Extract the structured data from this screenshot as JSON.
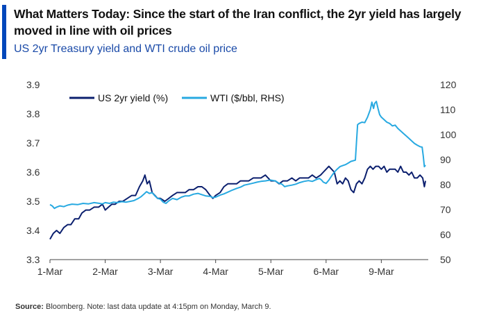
{
  "header": {
    "title": "What Matters Today: Since the start of the Iran conflict, the 2yr yield has largely moved in line with oil prices",
    "subtitle": "US 2yr Treasury yield and WTI crude oil price"
  },
  "source": {
    "label": "Source:",
    "text": "Bloomberg. Note: last data update at 4:15pm on Monday, March 9."
  },
  "colors": {
    "accent": "#0047bb",
    "yield": "#0b1f6e",
    "wti": "#27a9e1"
  },
  "chart_data": {
    "type": "line",
    "title": "What Matters Today: Since the start of the Iran conflict, the 2yr yield has largely moved in line with oil prices",
    "subtitle": "US 2yr Treasury yield and WTI crude oil price",
    "categories": [
      "1-Mar",
      "2-Mar",
      "3-Mar",
      "4-Mar",
      "5-Mar",
      "6-Mar",
      "9-Mar"
    ],
    "x_range": [
      0,
      6.85
    ],
    "left_axis": {
      "ylim": [
        3.3,
        3.9
      ],
      "ticks": [
        "3.3",
        "3.4",
        "3.5",
        "3.6",
        "3.7",
        "3.8",
        "3.9"
      ]
    },
    "right_axis": {
      "ylim": [
        50,
        120
      ],
      "ticks": [
        "50",
        "60",
        "70",
        "80",
        "90",
        "100",
        "110",
        "120"
      ]
    },
    "legend_position": "top",
    "grid": false,
    "series": [
      {
        "name": "US 2yr yield (%)",
        "axis": "left",
        "color": "#0b1f6e",
        "points": [
          [
            0.0,
            3.37
          ],
          [
            0.06,
            3.39
          ],
          [
            0.12,
            3.4
          ],
          [
            0.18,
            3.39
          ],
          [
            0.25,
            3.41
          ],
          [
            0.32,
            3.42
          ],
          [
            0.38,
            3.42
          ],
          [
            0.45,
            3.44
          ],
          [
            0.52,
            3.44
          ],
          [
            0.58,
            3.46
          ],
          [
            0.65,
            3.47
          ],
          [
            0.72,
            3.47
          ],
          [
            0.8,
            3.48
          ],
          [
            0.88,
            3.48
          ],
          [
            0.95,
            3.49
          ],
          [
            1.0,
            3.47
          ],
          [
            1.06,
            3.48
          ],
          [
            1.12,
            3.49
          ],
          [
            1.18,
            3.49
          ],
          [
            1.25,
            3.5
          ],
          [
            1.32,
            3.5
          ],
          [
            1.4,
            3.51
          ],
          [
            1.48,
            3.52
          ],
          [
            1.55,
            3.52
          ],
          [
            1.62,
            3.55
          ],
          [
            1.68,
            3.57
          ],
          [
            1.72,
            3.59
          ],
          [
            1.76,
            3.56
          ],
          [
            1.8,
            3.57
          ],
          [
            1.85,
            3.53
          ],
          [
            1.9,
            3.52
          ],
          [
            1.95,
            3.51
          ],
          [
            2.0,
            3.51
          ],
          [
            2.08,
            3.5
          ],
          [
            2.15,
            3.51
          ],
          [
            2.22,
            3.52
          ],
          [
            2.3,
            3.53
          ],
          [
            2.38,
            3.53
          ],
          [
            2.45,
            3.53
          ],
          [
            2.52,
            3.54
          ],
          [
            2.6,
            3.54
          ],
          [
            2.68,
            3.55
          ],
          [
            2.75,
            3.55
          ],
          [
            2.82,
            3.54
          ],
          [
            2.9,
            3.52
          ],
          [
            2.95,
            3.51
          ],
          [
            3.0,
            3.52
          ],
          [
            3.08,
            3.53
          ],
          [
            3.15,
            3.55
          ],
          [
            3.22,
            3.56
          ],
          [
            3.3,
            3.56
          ],
          [
            3.38,
            3.56
          ],
          [
            3.45,
            3.57
          ],
          [
            3.52,
            3.57
          ],
          [
            3.6,
            3.57
          ],
          [
            3.68,
            3.58
          ],
          [
            3.75,
            3.58
          ],
          [
            3.82,
            3.58
          ],
          [
            3.9,
            3.59
          ],
          [
            3.95,
            3.58
          ],
          [
            4.0,
            3.57
          ],
          [
            4.08,
            3.57
          ],
          [
            4.15,
            3.56
          ],
          [
            4.22,
            3.57
          ],
          [
            4.3,
            3.57
          ],
          [
            4.38,
            3.58
          ],
          [
            4.45,
            3.57
          ],
          [
            4.52,
            3.58
          ],
          [
            4.6,
            3.58
          ],
          [
            4.68,
            3.58
          ],
          [
            4.75,
            3.59
          ],
          [
            4.82,
            3.58
          ],
          [
            4.9,
            3.59
          ],
          [
            4.95,
            3.6
          ],
          [
            5.0,
            3.61
          ],
          [
            5.05,
            3.62
          ],
          [
            5.1,
            3.61
          ],
          [
            5.15,
            3.6
          ],
          [
            5.2,
            3.56
          ],
          [
            5.25,
            3.57
          ],
          [
            5.3,
            3.56
          ],
          [
            5.35,
            3.58
          ],
          [
            5.4,
            3.57
          ],
          [
            5.45,
            3.54
          ],
          [
            5.5,
            3.53
          ],
          [
            5.55,
            3.56
          ],
          [
            5.6,
            3.57
          ],
          [
            5.65,
            3.56
          ],
          [
            5.7,
            3.58
          ],
          [
            5.75,
            3.61
          ],
          [
            5.8,
            3.62
          ],
          [
            5.85,
            3.61
          ],
          [
            5.9,
            3.62
          ],
          [
            5.95,
            3.62
          ],
          [
            6.0,
            3.61
          ],
          [
            6.05,
            3.62
          ],
          [
            6.1,
            3.6
          ],
          [
            6.15,
            3.61
          ],
          [
            6.2,
            3.61
          ],
          [
            6.25,
            3.61
          ],
          [
            6.3,
            3.6
          ],
          [
            6.35,
            3.62
          ],
          [
            6.4,
            3.6
          ],
          [
            6.45,
            3.6
          ],
          [
            6.5,
            3.59
          ],
          [
            6.55,
            3.6
          ],
          [
            6.6,
            3.58
          ],
          [
            6.65,
            3.58
          ],
          [
            6.7,
            3.59
          ],
          [
            6.75,
            3.58
          ],
          [
            6.78,
            3.55
          ],
          [
            6.8,
            3.57
          ]
        ]
      },
      {
        "name": "WTI ($/bbl, RHS)",
        "axis": "right",
        "color": "#27a9e1",
        "points": [
          [
            0.0,
            72
          ],
          [
            0.04,
            71.5
          ],
          [
            0.08,
            70.5
          ],
          [
            0.12,
            71
          ],
          [
            0.18,
            71.5
          ],
          [
            0.25,
            71.2
          ],
          [
            0.32,
            71.8
          ],
          [
            0.4,
            72.2
          ],
          [
            0.5,
            72.0
          ],
          [
            0.6,
            72.5
          ],
          [
            0.7,
            72.3
          ],
          [
            0.8,
            72.8
          ],
          [
            0.9,
            72.5
          ],
          [
            0.95,
            72.3
          ],
          [
            1.0,
            72.8
          ],
          [
            1.08,
            72.5
          ],
          [
            1.15,
            73.0
          ],
          [
            1.22,
            72.8
          ],
          [
            1.3,
            73.2
          ],
          [
            1.38,
            73.0
          ],
          [
            1.45,
            73.3
          ],
          [
            1.52,
            73.6
          ],
          [
            1.6,
            74.5
          ],
          [
            1.65,
            75.2
          ],
          [
            1.7,
            76.2
          ],
          [
            1.75,
            77.2
          ],
          [
            1.8,
            76.5
          ],
          [
            1.85,
            76.8
          ],
          [
            1.9,
            75.5
          ],
          [
            1.95,
            74.5
          ],
          [
            2.0,
            74.2
          ],
          [
            2.05,
            73.0
          ],
          [
            2.1,
            72.5
          ],
          [
            2.15,
            73.5
          ],
          [
            2.22,
            74.5
          ],
          [
            2.3,
            74.0
          ],
          [
            2.38,
            75.0
          ],
          [
            2.45,
            75.5
          ],
          [
            2.52,
            75.5
          ],
          [
            2.6,
            76.2
          ],
          [
            2.68,
            76.5
          ],
          [
            2.75,
            76.0
          ],
          [
            2.82,
            75.5
          ],
          [
            2.9,
            75.3
          ],
          [
            2.95,
            74.8
          ],
          [
            3.0,
            75.0
          ],
          [
            3.08,
            75.8
          ],
          [
            3.15,
            76.3
          ],
          [
            3.22,
            77.0
          ],
          [
            3.3,
            77.8
          ],
          [
            3.38,
            78.5
          ],
          [
            3.45,
            79.0
          ],
          [
            3.52,
            79.8
          ],
          [
            3.6,
            80.2
          ],
          [
            3.68,
            80.6
          ],
          [
            3.75,
            81.0
          ],
          [
            3.82,
            81.3
          ],
          [
            3.9,
            81.5
          ],
          [
            3.95,
            81.7
          ],
          [
            4.0,
            81.8
          ],
          [
            4.08,
            81.5
          ],
          [
            4.15,
            80.5
          ],
          [
            4.2,
            80.2
          ],
          [
            4.25,
            79.2
          ],
          [
            4.3,
            79.5
          ],
          [
            4.38,
            79.8
          ],
          [
            4.45,
            80.2
          ],
          [
            4.52,
            80.8
          ],
          [
            4.6,
            81.3
          ],
          [
            4.68,
            81.6
          ],
          [
            4.75,
            81.3
          ],
          [
            4.82,
            82.0
          ],
          [
            4.88,
            82.5
          ],
          [
            4.92,
            81.8
          ],
          [
            4.95,
            81.0
          ],
          [
            5.0,
            80.5
          ],
          [
            5.05,
            81.8
          ],
          [
            5.1,
            83.5
          ],
          [
            5.15,
            85.0
          ],
          [
            5.2,
            86.2
          ],
          [
            5.25,
            87.2
          ],
          [
            5.3,
            87.6
          ],
          [
            5.35,
            88.0
          ],
          [
            5.4,
            88.6
          ],
          [
            5.45,
            89.3
          ],
          [
            5.5,
            89.6
          ],
          [
            5.53,
            89.8
          ],
          [
            5.55,
            97.0
          ],
          [
            5.57,
            104.0
          ],
          [
            5.6,
            104.5
          ],
          [
            5.65,
            105.0
          ],
          [
            5.7,
            104.8
          ],
          [
            5.75,
            107.0
          ],
          [
            5.8,
            110.0
          ],
          [
            5.83,
            113.0
          ],
          [
            5.86,
            110.5
          ],
          [
            5.88,
            112.5
          ],
          [
            5.91,
            113.3
          ],
          [
            5.94,
            110.5
          ],
          [
            5.97,
            108.0
          ],
          [
            6.0,
            107.0
          ],
          [
            6.05,
            106.0
          ],
          [
            6.1,
            105.0
          ],
          [
            6.15,
            104.5
          ],
          [
            6.2,
            103.5
          ],
          [
            6.25,
            103.8
          ],
          [
            6.3,
            102.5
          ],
          [
            6.35,
            101.5
          ],
          [
            6.4,
            100.5
          ],
          [
            6.45,
            99.5
          ],
          [
            6.5,
            98.5
          ],
          [
            6.55,
            97.5
          ],
          [
            6.6,
            96.5
          ],
          [
            6.65,
            95.8
          ],
          [
            6.7,
            95.2
          ],
          [
            6.74,
            95.0
          ],
          [
            6.76,
            91.5
          ],
          [
            6.78,
            87.2
          ],
          [
            6.8,
            87.8
          ]
        ]
      }
    ]
  }
}
